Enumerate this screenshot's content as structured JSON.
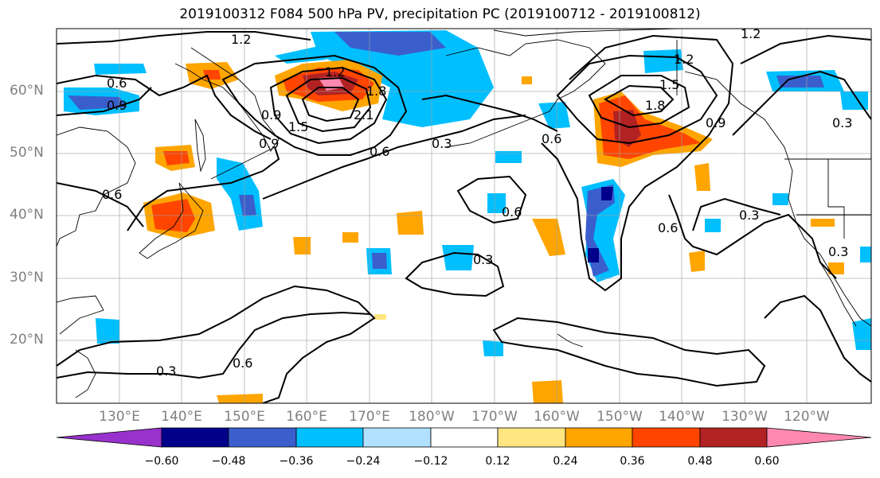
{
  "title": "2019100312 F084 500 hPa PV, precipitation PC (2019100712 - 2019100812)",
  "lat_labels": [
    "60°N",
    "50°N",
    "40°N",
    "30°N",
    "20°N"
  ],
  "lon_labels": [
    "130°E",
    "140°E",
    "150°E",
    "160°E",
    "170°E",
    "180°W",
    "170°W",
    "160°W",
    "150°W",
    "140°W",
    "130°W",
    "120°W"
  ],
  "colorbar": {
    "labels": [
      "−0.60",
      "−0.48",
      "−0.36",
      "−0.24",
      "−0.12",
      "0.12",
      "0.24",
      "0.36",
      "0.48",
      "0.60"
    ],
    "colors": [
      "#9932cc",
      "#00008b",
      "#3a5fcd",
      "#00bfff",
      "#b0e2ff",
      "#ffffff",
      "#ffe681",
      "#ffa500",
      "#ff4500",
      "#b22222",
      "#ff88b0"
    ]
  },
  "contour_labels": [
    "1.2",
    "1.2",
    "0.6",
    "0.9",
    "0.9",
    "1.5",
    "1.2",
    "1.8",
    "2.1",
    "0.9",
    "0.6",
    "0.3",
    "0.6",
    "1.8",
    "1.5",
    "1.2",
    "0.9",
    "0.3",
    "0.6",
    "0.6",
    "0.3",
    "0.6",
    "0.3",
    "0.3",
    "0.6",
    "0.3"
  ],
  "colors": {
    "coast": "#000000",
    "contour": "#000000",
    "grid": "#a0a0a0"
  }
}
